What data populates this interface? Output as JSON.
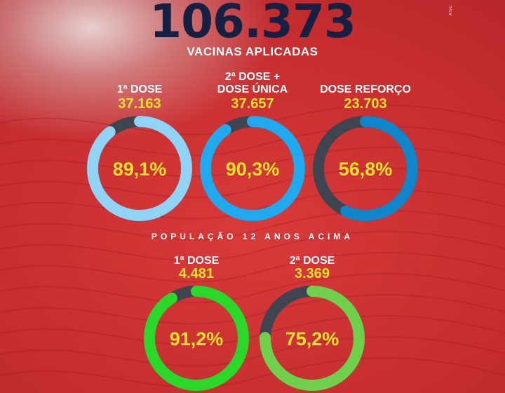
{
  "header": {
    "total": "106.373",
    "subtitle": "VACINAS APLICADAS",
    "side_mark": "ASC"
  },
  "section_label": "POPULAÇÃO 12 ANOS ACIMA",
  "colors": {
    "ring_track": "#3f4550",
    "light_blue": "#8fd3f7",
    "blue": "#1fa9ef",
    "dark_blue": "#0f86c9",
    "bright_green": "#2ad82a",
    "green": "#6fd04c",
    "number": "#f6e22a",
    "headline": "#162043"
  },
  "chart_data": {
    "type": "donut",
    "charts": [
      {
        "label": "1ª DOSE",
        "value": "37.163",
        "percent": 89.1,
        "percent_label": "89,1%",
        "color": "#8fd3f7"
      },
      {
        "label": "2ª DOSE + DOSE ÚNICA",
        "label_lines": [
          "2ª DOSE +",
          "DOSE ÚNICA"
        ],
        "value": "37.657",
        "percent": 90.3,
        "percent_label": "90,3%",
        "color": "#1fa9ef"
      },
      {
        "label": "DOSE REFORÇO",
        "value": "23.703",
        "percent": 56.8,
        "percent_label": "56,8%",
        "color": "#0f86c9"
      },
      {
        "label": "1ª DOSE",
        "value": "4.481",
        "percent": 91.2,
        "percent_label": "91,2%",
        "color": "#2ad82a"
      },
      {
        "label": "2ª DOSE",
        "value": "3.369",
        "percent": 75.2,
        "percent_label": "75,2%",
        "color": "#6fd04c"
      }
    ]
  }
}
